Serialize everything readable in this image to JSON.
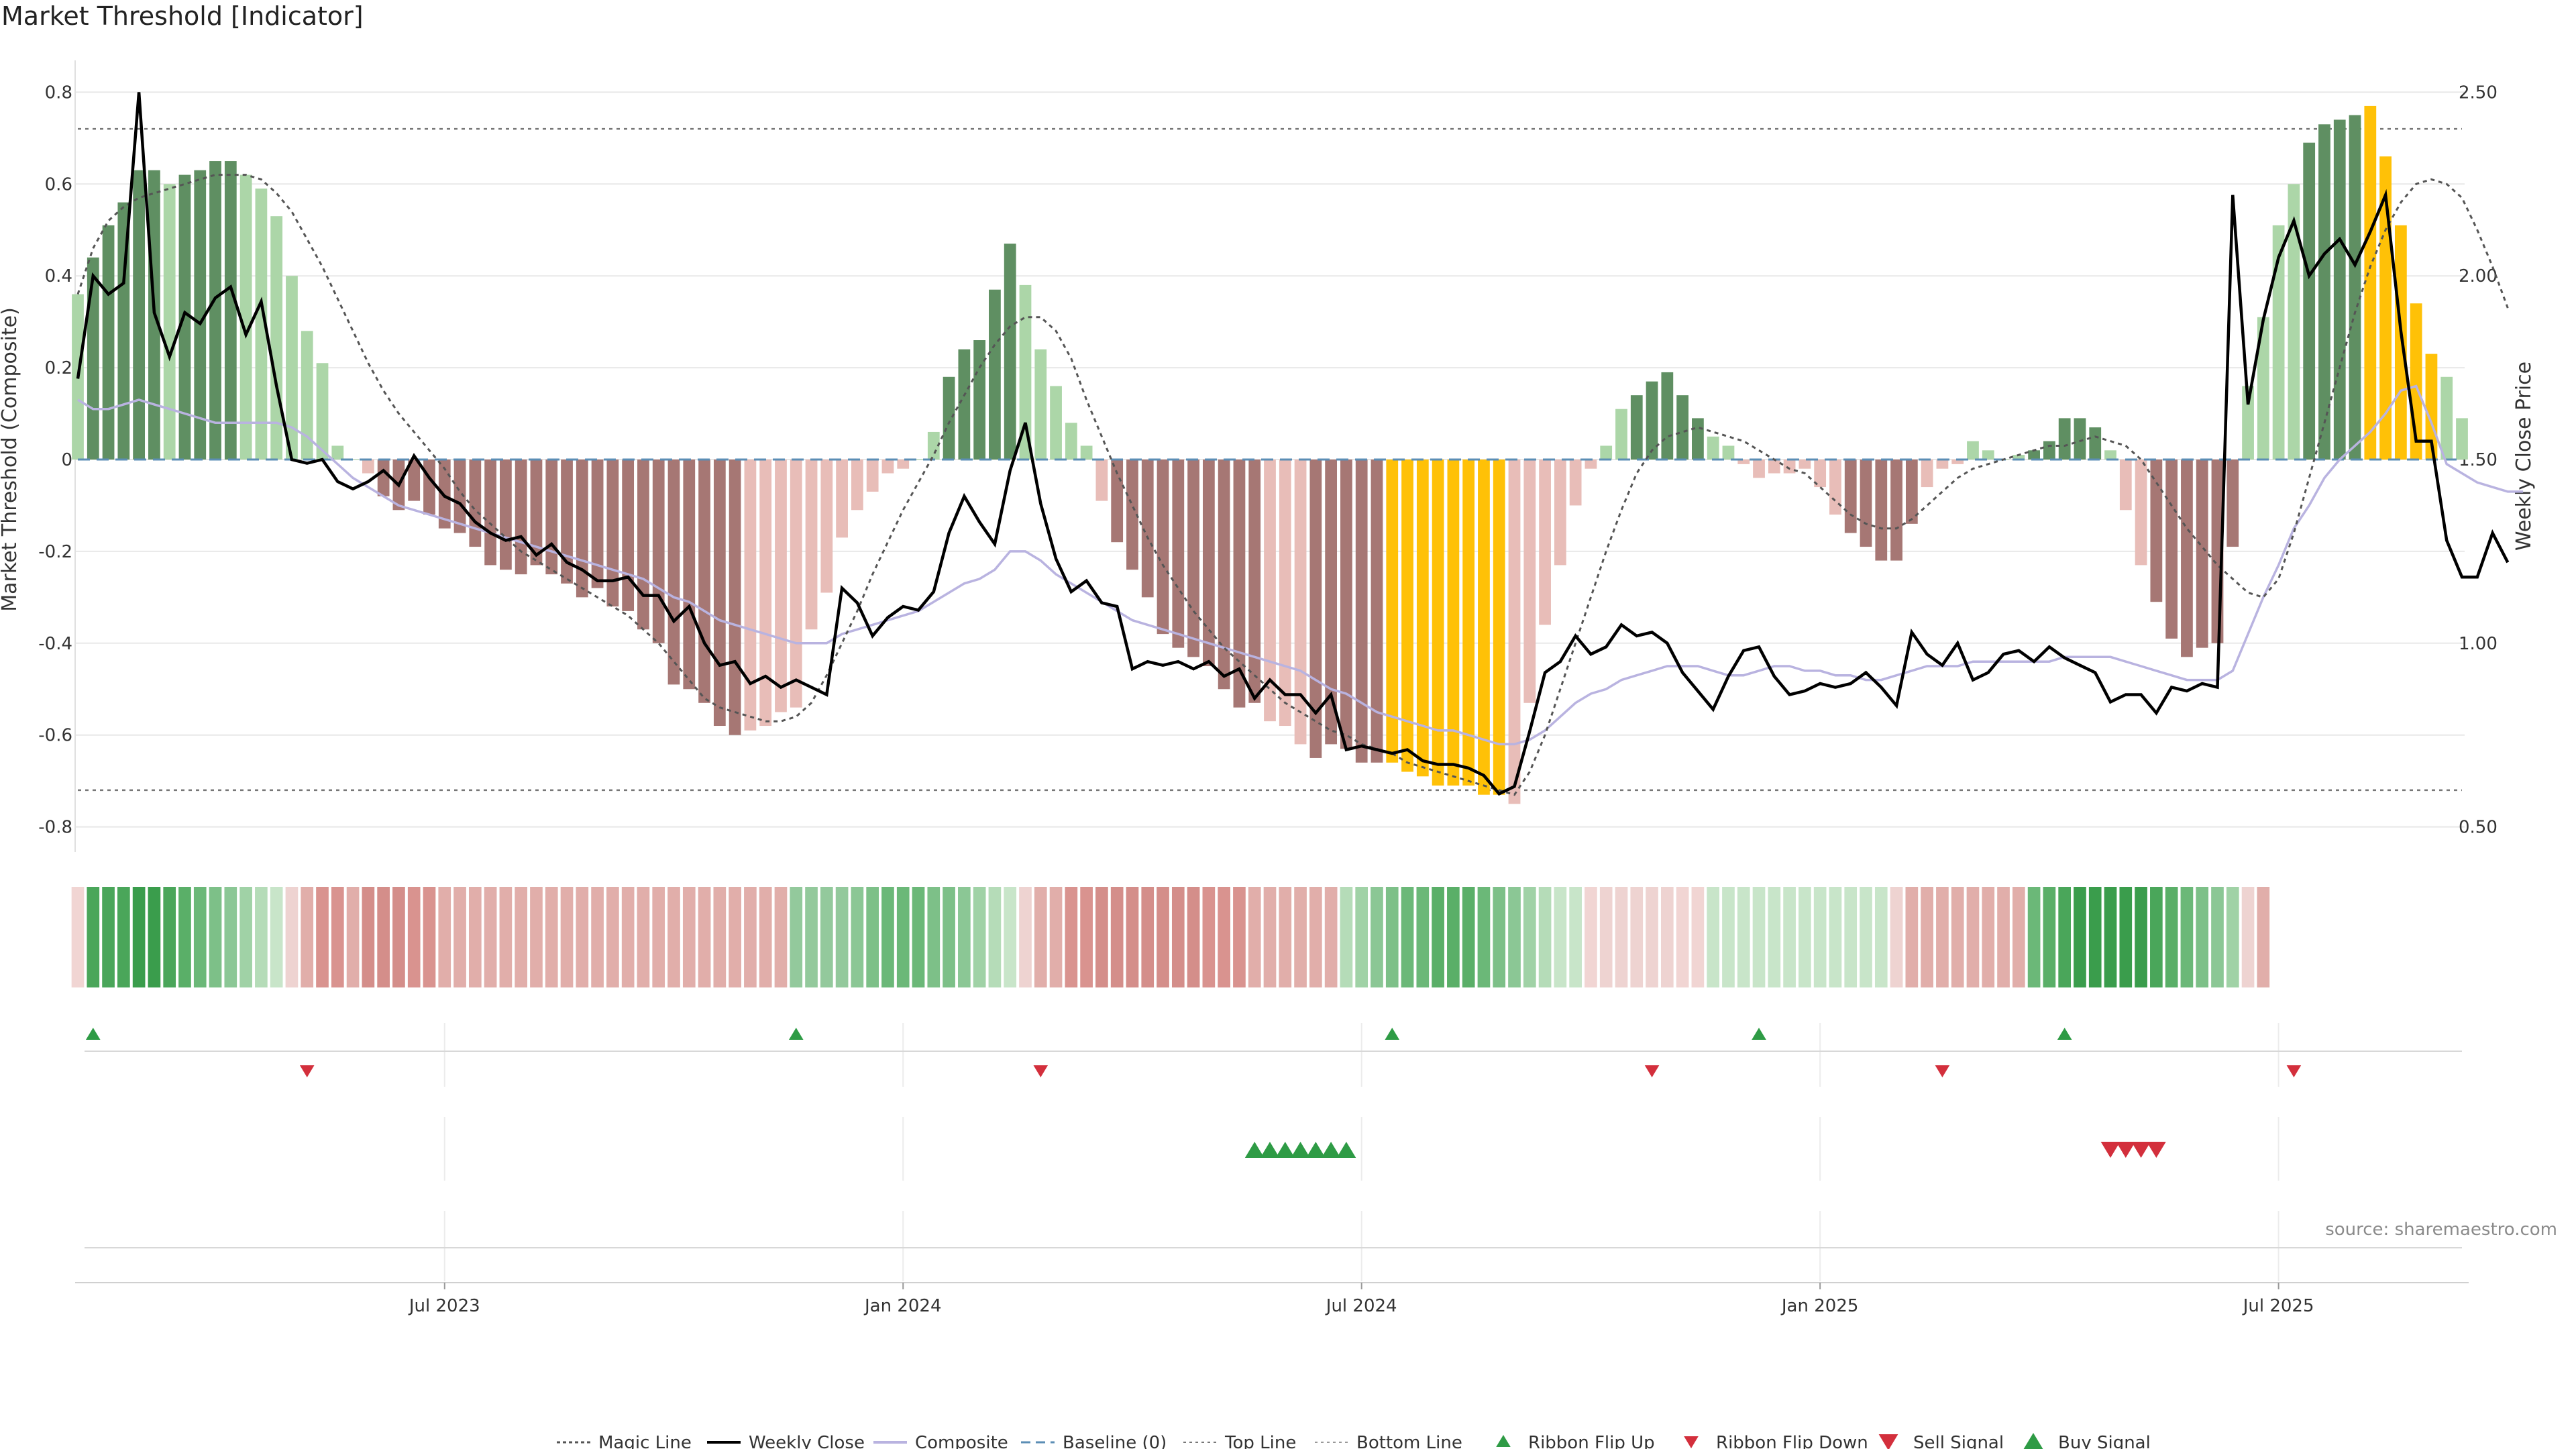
{
  "title": "Market Threshold [Indicator]",
  "source": "source: sharemaestro.com",
  "legend": [
    "Magic Line",
    "Weekly Close",
    "Composite",
    "Baseline (0)",
    "Top Line",
    "Bottom Line",
    "Ribbon Flip Up",
    "Ribbon Flip Down",
    "Sell Signal",
    "Buy Signal"
  ],
  "colors": {
    "dark_green": "#5f8f62",
    "light_green": "#acd6a8",
    "dark_red": "#a67774",
    "light_red": "#e8bdb8",
    "gold": "#ffc107",
    "black": "#000000",
    "composite": "#b9b3e0",
    "baseline": "#5b8eb5",
    "buy": "#2e9b45",
    "sell": "#d32f3c",
    "grid": "#e8e8e8"
  },
  "chart_data": {
    "type": "bar",
    "ylabel_left": "Market Threshold (Composite)",
    "ylabel_right": "Weekly Close Price",
    "ylim_left": [
      -0.84,
      0.84
    ],
    "ylim_right": [
      0.45,
      2.55
    ],
    "yticks_left": [
      -0.8,
      -0.6,
      -0.4,
      -0.2,
      0,
      0.2,
      0.4,
      0.6,
      0.8
    ],
    "yticks_right": [
      0.5,
      1.0,
      1.5,
      2.0,
      2.5
    ],
    "top_line": 0.72,
    "bottom_line": -0.72,
    "x_ticks": [
      "Jul 2023",
      "Jan 2024",
      "Jul 2024",
      "Jan 2025",
      "Jul 2025"
    ],
    "x_tick_index": [
      24,
      54,
      84,
      114,
      144
    ],
    "composite_bars": [
      0.36,
      0.44,
      0.51,
      0.56,
      0.63,
      0.63,
      0.6,
      0.62,
      0.63,
      0.65,
      0.65,
      0.62,
      0.59,
      0.53,
      0.4,
      0.28,
      0.21,
      0.03,
      0,
      -0.03,
      -0.08,
      -0.11,
      -0.09,
      -0.12,
      -0.15,
      -0.16,
      -0.19,
      -0.23,
      -0.24,
      -0.25,
      -0.23,
      -0.25,
      -0.27,
      -0.3,
      -0.28,
      -0.32,
      -0.33,
      -0.37,
      -0.4,
      -0.49,
      -0.5,
      -0.53,
      -0.58,
      -0.6,
      -0.59,
      -0.58,
      -0.55,
      -0.54,
      -0.37,
      -0.29,
      -0.17,
      -0.11,
      -0.07,
      -0.03,
      -0.02,
      0,
      0.06,
      0.18,
      0.24,
      0.26,
      0.37,
      0.47,
      0.38,
      0.24,
      0.16,
      0.08,
      0.03,
      -0.09,
      -0.18,
      -0.24,
      -0.3,
      -0.38,
      -0.41,
      -0.43,
      -0.45,
      -0.5,
      -0.54,
      -0.53,
      -0.57,
      -0.58,
      -0.62,
      -0.65,
      -0.62,
      -0.63,
      -0.66,
      -0.66,
      -0.66,
      -0.68,
      -0.69,
      -0.71,
      -0.71,
      -0.71,
      -0.73,
      -0.73,
      -0.75,
      -0.53,
      -0.36,
      -0.23,
      -0.1,
      -0.02,
      0.03,
      0.11,
      0.14,
      0.17,
      0.19,
      0.14,
      0.09,
      0.05,
      0.03,
      -0.01,
      -0.04,
      -0.03,
      -0.03,
      -0.02,
      -0.06,
      -0.12,
      -0.16,
      -0.19,
      -0.22,
      -0.22,
      -0.14,
      -0.06,
      -0.02,
      -0.01,
      0.04,
      0.02,
      0,
      0.01,
      0.02,
      0.04,
      0.09,
      0.09,
      0.07,
      0.02,
      -0.11,
      -0.23,
      -0.31,
      -0.39,
      -0.43,
      -0.41,
      -0.4,
      -0.19,
      0.16,
      0.31,
      0.51,
      0.6,
      0.69,
      0.73,
      0.74,
      0.75,
      0.77,
      0.66,
      0.51,
      0.34,
      0.23,
      0.18,
      0.09
    ],
    "bar_colors": [
      "L",
      "D",
      "D",
      "D",
      "D",
      "D",
      "L",
      "D",
      "D",
      "D",
      "D",
      "L",
      "L",
      "L",
      "L",
      "L",
      "L",
      "L",
      "L",
      "R",
      "D",
      "D",
      "D",
      "D",
      "D",
      "D",
      "D",
      "D",
      "D",
      "D",
      "D",
      "D",
      "D",
      "D",
      "D",
      "D",
      "D",
      "D",
      "D",
      "D",
      "D",
      "D",
      "D",
      "D",
      "R",
      "R",
      "R",
      "R",
      "R",
      "R",
      "R",
      "R",
      "R",
      "R",
      "R",
      "L",
      "L",
      "D",
      "D",
      "D",
      "D",
      "D",
      "L",
      "L",
      "L",
      "L",
      "L",
      "R",
      "D",
      "D",
      "D",
      "D",
      "D",
      "D",
      "D",
      "D",
      "D",
      "D",
      "R",
      "R",
      "R",
      "D",
      "D",
      "D",
      "D",
      "D",
      "G",
      "G",
      "G",
      "G",
      "G",
      "G",
      "G",
      "G",
      "R",
      "R",
      "R",
      "R",
      "R",
      "R",
      "L",
      "L",
      "D",
      "D",
      "D",
      "D",
      "D",
      "L",
      "L",
      "L",
      "L",
      "L",
      "R",
      "R",
      "R",
      "R",
      "D",
      "D",
      "D",
      "D",
      "D",
      "R",
      "R",
      "R",
      "R",
      "L",
      "L",
      "L",
      "D",
      "D",
      "D",
      "D",
      "D",
      "L",
      "L",
      "R",
      "D",
      "D",
      "D",
      "D",
      "D",
      "D",
      "R",
      "R",
      "L",
      "L",
      "D",
      "D",
      "D",
      "D",
      "G",
      "G",
      "G",
      "G",
      "G",
      "L",
      "L",
      "L",
      "L",
      "L",
      "L"
    ],
    "magic_line": [
      0.36,
      0.46,
      0.52,
      0.55,
      0.57,
      0.58,
      0.59,
      0.6,
      0.61,
      0.62,
      0.62,
      0.62,
      0.61,
      0.58,
      0.54,
      0.48,
      0.42,
      0.35,
      0.28,
      0.21,
      0.15,
      0.1,
      0.06,
      0.02,
      -0.02,
      -0.07,
      -0.11,
      -0.14,
      -0.17,
      -0.2,
      -0.22,
      -0.24,
      -0.26,
      -0.28,
      -0.3,
      -0.32,
      -0.34,
      -0.37,
      -0.4,
      -0.44,
      -0.48,
      -0.52,
      -0.54,
      -0.55,
      -0.56,
      -0.57,
      -0.57,
      -0.56,
      -0.53,
      -0.47,
      -0.4,
      -0.33,
      -0.25,
      -0.18,
      -0.11,
      -0.05,
      0.01,
      0.08,
      0.14,
      0.2,
      0.25,
      0.29,
      0.31,
      0.31,
      0.28,
      0.22,
      0.13,
      0.05,
      -0.03,
      -0.1,
      -0.17,
      -0.23,
      -0.28,
      -0.33,
      -0.37,
      -0.41,
      -0.44,
      -0.47,
      -0.5,
      -0.53,
      -0.55,
      -0.57,
      -0.59,
      -0.6,
      -0.62,
      -0.63,
      -0.64,
      -0.66,
      -0.67,
      -0.68,
      -0.69,
      -0.7,
      -0.71,
      -0.72,
      -0.73,
      -0.68,
      -0.6,
      -0.5,
      -0.4,
      -0.3,
      -0.2,
      -0.11,
      -0.03,
      0.02,
      0.05,
      0.06,
      0.07,
      0.06,
      0.05,
      0.04,
      0.02,
      0.0,
      -0.02,
      -0.03,
      -0.06,
      -0.09,
      -0.12,
      -0.14,
      -0.15,
      -0.15,
      -0.13,
      -0.1,
      -0.07,
      -0.04,
      -0.02,
      -0.01,
      0.0,
      0.01,
      0.02,
      0.03,
      0.03,
      0.04,
      0.05,
      0.04,
      0.03,
      0.0,
      -0.05,
      -0.1,
      -0.15,
      -0.19,
      -0.23,
      -0.26,
      -0.29,
      -0.3,
      -0.26,
      -0.16,
      -0.04,
      0.08,
      0.2,
      0.32,
      0.42,
      0.5,
      0.56,
      0.6,
      0.61,
      0.6,
      0.57,
      0.5,
      0.42,
      0.33
    ],
    "weekly_close": [
      1.72,
      2.0,
      1.95,
      1.98,
      2.5,
      1.9,
      1.78,
      1.9,
      1.87,
      1.94,
      1.97,
      1.84,
      1.93,
      1.7,
      1.5,
      1.49,
      1.5,
      1.44,
      1.42,
      1.44,
      1.47,
      1.43,
      1.51,
      1.45,
      1.4,
      1.38,
      1.33,
      1.3,
      1.28,
      1.29,
      1.24,
      1.27,
      1.22,
      1.2,
      1.17,
      1.17,
      1.18,
      1.13,
      1.13,
      1.06,
      1.1,
      1.0,
      0.94,
      0.95,
      0.89,
      0.91,
      0.88,
      0.9,
      0.88,
      0.86,
      1.15,
      1.11,
      1.02,
      1.07,
      1.1,
      1.09,
      1.14,
      1.3,
      1.4,
      1.33,
      1.27,
      1.47,
      1.6,
      1.38,
      1.23,
      1.14,
      1.17,
      1.11,
      1.1,
      0.93,
      0.95,
      0.94,
      0.95,
      0.93,
      0.95,
      0.91,
      0.93,
      0.85,
      0.9,
      0.86,
      0.86,
      0.81,
      0.86,
      0.71,
      0.72,
      0.71,
      0.7,
      0.71,
      0.68,
      0.67,
      0.67,
      0.66,
      0.64,
      0.59,
      0.61,
      0.76,
      0.92,
      0.95,
      1.02,
      0.97,
      0.99,
      1.05,
      1.02,
      1.03,
      1.0,
      0.92,
      0.87,
      0.82,
      0.91,
      0.98,
      0.99,
      0.91,
      0.86,
      0.87,
      0.89,
      0.88,
      0.89,
      0.92,
      0.88,
      0.83,
      1.03,
      0.97,
      0.94,
      1.0,
      0.9,
      0.92,
      0.97,
      0.98,
      0.95,
      0.99,
      0.96,
      0.94,
      0.92,
      0.84,
      0.86,
      0.86,
      0.81,
      0.88,
      0.87,
      0.89,
      0.88,
      2.22,
      1.65,
      1.88,
      2.05,
      2.15,
      2.0,
      2.06,
      2.1,
      2.03,
      2.12,
      2.22,
      1.85,
      1.55,
      1.55,
      1.28,
      1.18,
      1.18,
      1.3,
      1.22
    ],
    "composite_line": [
      0.13,
      0.11,
      0.11,
      0.12,
      0.13,
      0.12,
      0.11,
      0.1,
      0.09,
      0.08,
      0.08,
      0.08,
      0.08,
      0.08,
      0.07,
      0.05,
      0.02,
      -0.01,
      -0.04,
      -0.06,
      -0.08,
      -0.1,
      -0.11,
      -0.12,
      -0.13,
      -0.14,
      -0.15,
      -0.16,
      -0.17,
      -0.18,
      -0.19,
      -0.2,
      -0.21,
      -0.22,
      -0.23,
      -0.24,
      -0.25,
      -0.26,
      -0.28,
      -0.3,
      -0.31,
      -0.33,
      -0.35,
      -0.36,
      -0.37,
      -0.38,
      -0.39,
      -0.4,
      -0.4,
      -0.4,
      -0.38,
      -0.37,
      -0.36,
      -0.35,
      -0.34,
      -0.33,
      -0.31,
      -0.29,
      -0.27,
      -0.26,
      -0.24,
      -0.2,
      -0.2,
      -0.22,
      -0.25,
      -0.27,
      -0.29,
      -0.31,
      -0.33,
      -0.35,
      -0.36,
      -0.37,
      -0.38,
      -0.39,
      -0.4,
      -0.41,
      -0.42,
      -0.43,
      -0.44,
      -0.45,
      -0.46,
      -0.48,
      -0.5,
      -0.51,
      -0.53,
      -0.55,
      -0.56,
      -0.57,
      -0.58,
      -0.59,
      -0.59,
      -0.6,
      -0.61,
      -0.62,
      -0.62,
      -0.61,
      -0.59,
      -0.56,
      -0.53,
      -0.51,
      -0.5,
      -0.48,
      -0.47,
      -0.46,
      -0.45,
      -0.45,
      -0.45,
      -0.46,
      -0.47,
      -0.47,
      -0.46,
      -0.45,
      -0.45,
      -0.46,
      -0.46,
      -0.47,
      -0.47,
      -0.48,
      -0.48,
      -0.47,
      -0.46,
      -0.45,
      -0.45,
      -0.45,
      -0.44,
      -0.44,
      -0.44,
      -0.44,
      -0.44,
      -0.44,
      -0.43,
      -0.43,
      -0.43,
      -0.43,
      -0.44,
      -0.45,
      -0.46,
      -0.47,
      -0.48,
      -0.48,
      -0.48,
      -0.46,
      -0.38,
      -0.3,
      -0.23,
      -0.15,
      -0.1,
      -0.04,
      0.0,
      0.03,
      0.06,
      0.1,
      0.15,
      0.16,
      0.08,
      -0.01,
      -0.03,
      -0.05,
      -0.06,
      -0.07,
      -0.07
    ],
    "ribbon_colors": [
      "#f1d5d3",
      "#4aa65a",
      "#4aa65a",
      "#4aa65a",
      "#3a9d4c",
      "#3a9d4c",
      "#4aa65a",
      "#5aaf68",
      "#6bb878",
      "#7dc088",
      "#8bc795",
      "#a0d2a6",
      "#b5dcb8",
      "#c8e5c9",
      "#eed3d1",
      "#e1aeaa",
      "#d9938f",
      "#d9938f",
      "#e1aeaa",
      "#d48e8a",
      "#d48e8a",
      "#d48e8a",
      "#d9938f",
      "#d9938f",
      "#e1aeaa",
      "#e1aeaa",
      "#e1aeaa",
      "#e1aeaa",
      "#e1aeaa",
      "#e1aeaa",
      "#e1aeaa",
      "#e1aeaa",
      "#e1aeaa",
      "#e1aeaa",
      "#e1aeaa",
      "#e1aeaa",
      "#e1aeaa",
      "#e1aeaa",
      "#e1aeaa",
      "#e1aeaa",
      "#e1aeaa",
      "#e1aeaa",
      "#e1aeaa",
      "#e1aeaa",
      "#e1aeaa",
      "#e1aeaa",
      "#e1aeaa",
      "#93c99c",
      "#93c99c",
      "#93c99c",
      "#93c99c",
      "#8bc795",
      "#7dc088",
      "#6bb878",
      "#6bb878",
      "#6bb878",
      "#7dc088",
      "#7dc088",
      "#8bc795",
      "#a0d2a6",
      "#b5dcb8",
      "#c8e5c9",
      "#eed3d1",
      "#e1aeaa",
      "#e1aeaa",
      "#d9938f",
      "#d9938f",
      "#d48e8a",
      "#d48e8a",
      "#d48e8a",
      "#d48e8a",
      "#d48e8a",
      "#d48e8a",
      "#d48e8a",
      "#d9938f",
      "#d9938f",
      "#d9938f",
      "#e1aeaa",
      "#e1aeaa",
      "#e1aeaa",
      "#e1aeaa",
      "#e1aeaa",
      "#e1aeaa",
      "#b5dcb8",
      "#a0d2a6",
      "#8bc795",
      "#7dc088",
      "#6bb878",
      "#6bb878",
      "#5aaf68",
      "#5aaf68",
      "#5aaf68",
      "#6bb878",
      "#7dc088",
      "#8bc795",
      "#a0d2a6",
      "#b5dcb8",
      "#c8e5c9",
      "#c8e5c9",
      "#f1d5d3",
      "#eed3d1",
      "#eed3d1",
      "#eed3d1",
      "#eed3d1",
      "#eed3d1",
      "#f1d5d3",
      "#f1d5d3",
      "#c8e5c9",
      "#c8e5c9",
      "#c8e5c9",
      "#c8e5c9",
      "#c8e5c9",
      "#c8e5c9",
      "#c8e5c9",
      "#c8e5c9",
      "#c8e5c9",
      "#c8e5c9",
      "#c8e5c9",
      "#c8e5c9",
      "#eed3d1",
      "#e1aeaa",
      "#e1aeaa",
      "#e1aeaa",
      "#e1aeaa",
      "#e1aeaa",
      "#e1aeaa",
      "#e1aeaa",
      "#e1aeaa",
      "#6bb878",
      "#5aaf68",
      "#4aa65a",
      "#3a9d4c",
      "#3a9d4c",
      "#3a9d4c",
      "#3a9d4c",
      "#3a9d4c",
      "#4aa65a",
      "#5aaf68",
      "#6bb878",
      "#7dc088",
      "#8bc795",
      "#a0d2a6",
      "#eed3d1",
      "#e1aeaa"
    ],
    "ribbon_flip_up_index": [
      1,
      47,
      86,
      110,
      130
    ],
    "ribbon_flip_down_index": [
      15,
      63,
      103,
      122,
      145
    ],
    "buy_signal_index": [
      77,
      78,
      79,
      80,
      81,
      82,
      83
    ],
    "sell_signal_index": [
      133,
      134,
      135,
      136
    ]
  }
}
